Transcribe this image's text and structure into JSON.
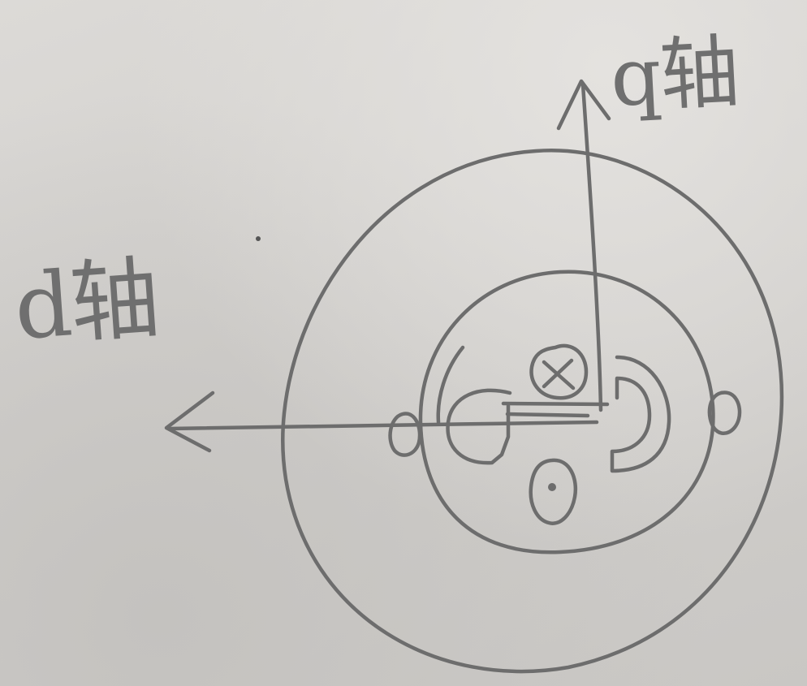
{
  "diagram": {
    "q_axis_label": "q轴",
    "d_axis_label": "d轴",
    "ink_color": "#6d6d6d",
    "paper_color": "#d4d2cf"
  }
}
